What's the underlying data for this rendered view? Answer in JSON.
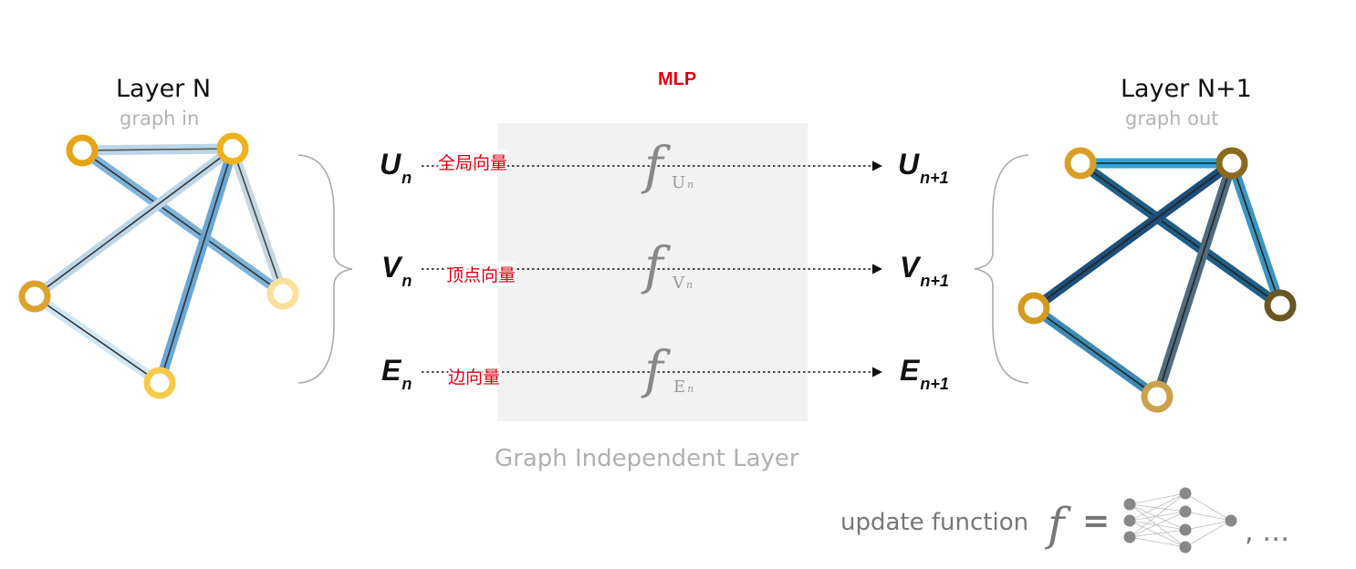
{
  "left_graph": {
    "title": "Layer N",
    "subtitle": "graph in"
  },
  "right_graph": {
    "title": "Layer N+1",
    "subtitle": "graph out"
  },
  "block": {
    "label_top": "MLP",
    "label_bottom": "Graph Independent Layer",
    "rows": [
      {
        "in_main": "U",
        "in_sub": "n",
        "annotation": "全局向量",
        "func_sub": "U",
        "func_sub2": "n",
        "out_main": "U",
        "out_sub": "n+1"
      },
      {
        "in_main": "V",
        "in_sub": "n",
        "annotation": "顶点向量",
        "func_sub": "V",
        "func_sub2": "n",
        "out_main": "V",
        "out_sub": "n+1"
      },
      {
        "in_main": "E",
        "in_sub": "n",
        "annotation": "边向量",
        "func_sub": "E",
        "func_sub2": "n",
        "out_main": "E",
        "out_sub": "n+1"
      }
    ],
    "func_symbol": "f"
  },
  "legend": {
    "text": "update function",
    "f_symbol": "f",
    "equals": "=",
    "trailing": ", …"
  },
  "colors": {
    "annotation": "#e00012",
    "box": "#f2f2f2",
    "node_gold": "#e0a419"
  }
}
